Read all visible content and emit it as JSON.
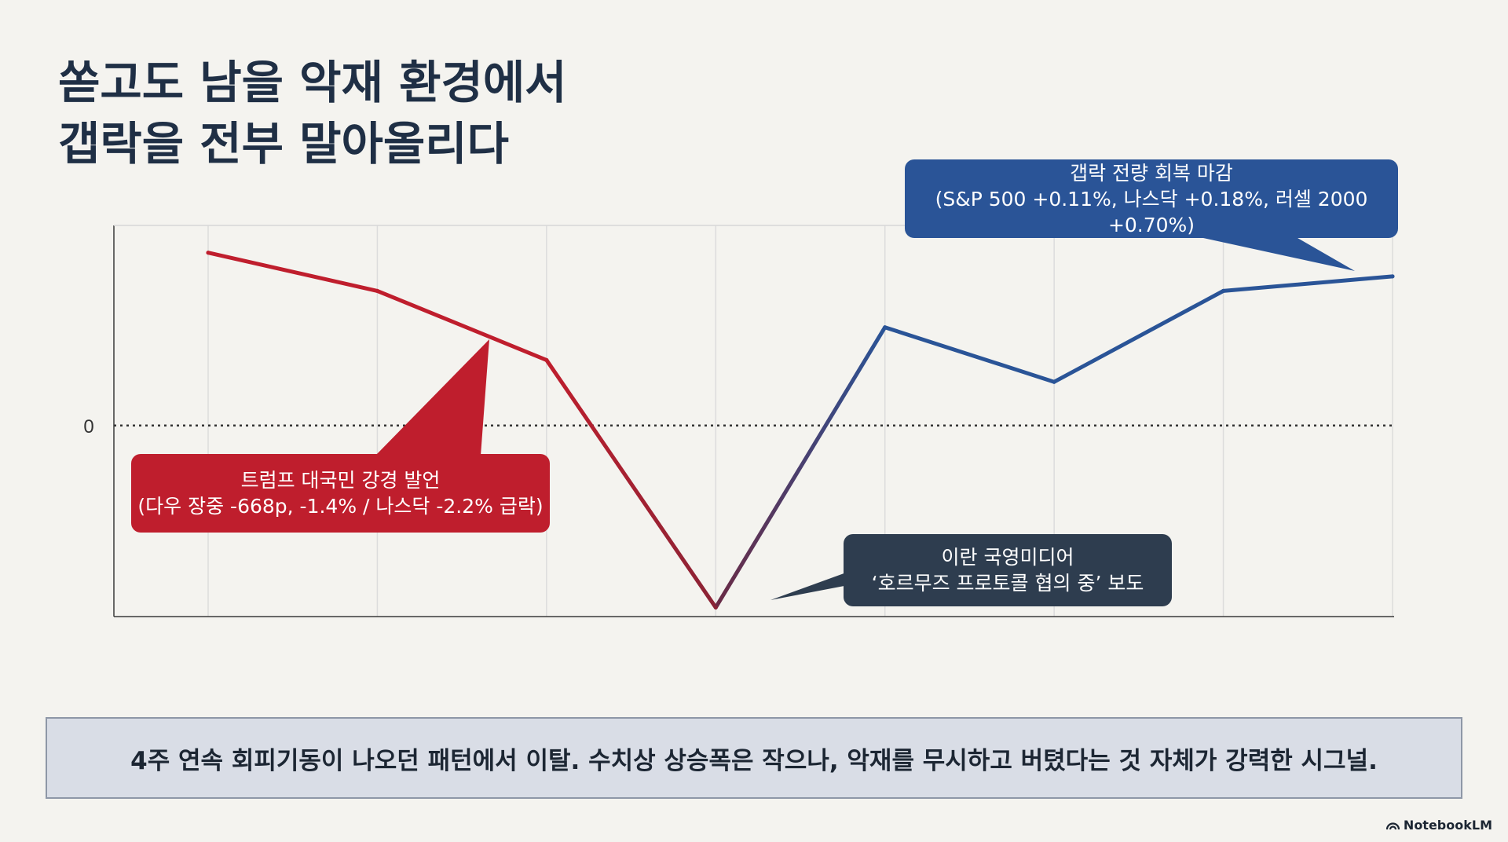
{
  "title": {
    "line1": "쏟고도 남을 악재 환경에서",
    "line2": "갭락을 전부 말아올리다"
  },
  "chart_data": {
    "type": "line",
    "x": [
      1,
      2,
      3,
      4,
      5,
      6,
      7,
      8
    ],
    "series": [
      {
        "values": [
          0.95,
          0.74,
          0.36,
          -1.0,
          0.54,
          0.24,
          0.74,
          0.82
        ]
      }
    ],
    "ylim": [
      -1.05,
      1.1
    ],
    "y_ticks": [
      "0"
    ],
    "zero_line": "dotted",
    "grid": "vertical",
    "colors": {
      "down": "#bf1e2d",
      "up": "#2a5497"
    }
  },
  "callouts": {
    "red": {
      "line1": "트럼프 대국민 강경 발언",
      "line2": "(다우 장중 -668p, -1.4% / 나스닥 -2.2% 급락)",
      "color": "#bf1e2d"
    },
    "dark": {
      "line1": "이란 국영미디어",
      "line2": "‘호르무즈 프로토콜 협의 중’ 보도",
      "color": "#2e3d4f"
    },
    "blue": {
      "line1": "갭락 전량 회복 마감",
      "line2": "(S&P 500 +0.11%, 나스닥 +0.18%, 러셀 2000 +0.70%)",
      "color": "#2a5497"
    }
  },
  "summary": "4주 연속 회피기동이 나오던 패턴에서 이탈. 수치상 상승폭은 작으나, 악재를 무시하고 버텼다는 것 자체가 강력한 시그널.",
  "brand": {
    "icon": "notebooklm-logo-icon",
    "label": "NotebookLM"
  }
}
